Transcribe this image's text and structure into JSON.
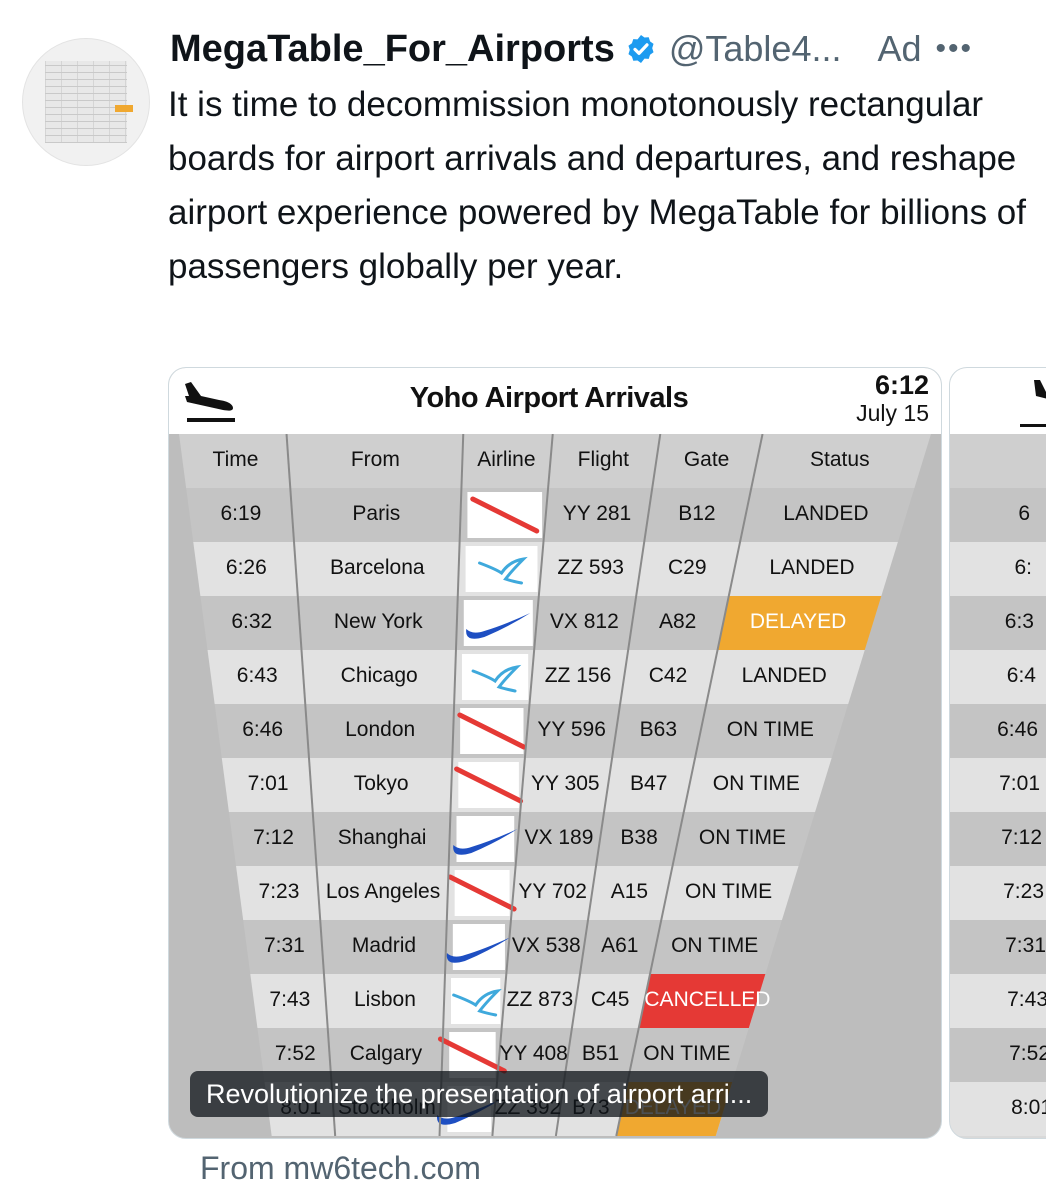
{
  "tweet": {
    "display_name": "MegaTable_For_Airports",
    "handle": "@Table4...",
    "ad_label": "Ad",
    "more": "•••",
    "text": "It is time to decommission monotonously rectangular boards for airport arrivals and departures, and reshape airport experience powered by MegaTable for billions of passengers globally per year.",
    "verified_color": "#1d9bf0"
  },
  "board": {
    "title": "Yoho Airport Arrivals",
    "time": "6:12",
    "date": "July 15",
    "columns": [
      "Time",
      "From",
      "Airline",
      "Flight",
      "Gate",
      "Status"
    ],
    "rows": [
      {
        "time": "6:19",
        "from": "Paris",
        "airline": "red-stripe-logo",
        "flight": "YY 281",
        "gate": "B12",
        "status": "LANDED",
        "status_color": ""
      },
      {
        "time": "6:26",
        "from": "Barcelona",
        "airline": "bird-logo",
        "flight": "ZZ 593",
        "gate": "C29",
        "status": "LANDED",
        "status_color": ""
      },
      {
        "time": "6:32",
        "from": "New York",
        "airline": "swoosh-logo",
        "flight": "VX 812",
        "gate": "A82",
        "status": "DELAYED",
        "status_color": "#f0a830"
      },
      {
        "time": "6:43",
        "from": "Chicago",
        "airline": "bird-logo",
        "flight": "ZZ 156",
        "gate": "C42",
        "status": "LANDED",
        "status_color": ""
      },
      {
        "time": "6:46",
        "from": "London",
        "airline": "red-stripe-logo",
        "flight": "YY 596",
        "gate": "B63",
        "status": "ON TIME",
        "status_color": ""
      },
      {
        "time": "7:01",
        "from": "Tokyo",
        "airline": "red-stripe-logo",
        "flight": "YY 305",
        "gate": "B47",
        "status": "ON TIME",
        "status_color": ""
      },
      {
        "time": "7:12",
        "from": "Shanghai",
        "airline": "swoosh-logo",
        "flight": "VX 189",
        "gate": "B38",
        "status": "ON TIME",
        "status_color": ""
      },
      {
        "time": "7:23",
        "from": "Los Angeles",
        "airline": "red-stripe-logo",
        "flight": "YY 702",
        "gate": "A15",
        "status": "ON TIME",
        "status_color": ""
      },
      {
        "time": "7:31",
        "from": "Madrid",
        "airline": "swoosh-logo",
        "flight": "VX 538",
        "gate": "A61",
        "status": "ON TIME",
        "status_color": ""
      },
      {
        "time": "7:43",
        "from": "Lisbon",
        "airline": "bird-logo",
        "flight": "ZZ 873",
        "gate": "C45",
        "status": "CANCELLED",
        "status_color": "#e53935"
      },
      {
        "time": "7:52",
        "from": "Calgary",
        "airline": "red-stripe-logo",
        "flight": "YY 408",
        "gate": "B51",
        "status": "ON TIME",
        "status_color": ""
      },
      {
        "time": "8:01",
        "from": "Stockholm",
        "airline": "swoosh-logo",
        "flight": "ZZ 392",
        "gate": "B73",
        "status": "DELAYED",
        "status_color": "#f0a830"
      }
    ]
  },
  "second_media": {
    "times": [
      "6",
      "6:",
      "6:3",
      "6:4",
      "6:46",
      "7:01",
      "7:12",
      "7:23",
      "7:31",
      "7:43",
      "7:52",
      "8:01"
    ]
  },
  "caption": "Revolutionize the presentation of airport arri...",
  "source": "From mw6tech.com"
}
